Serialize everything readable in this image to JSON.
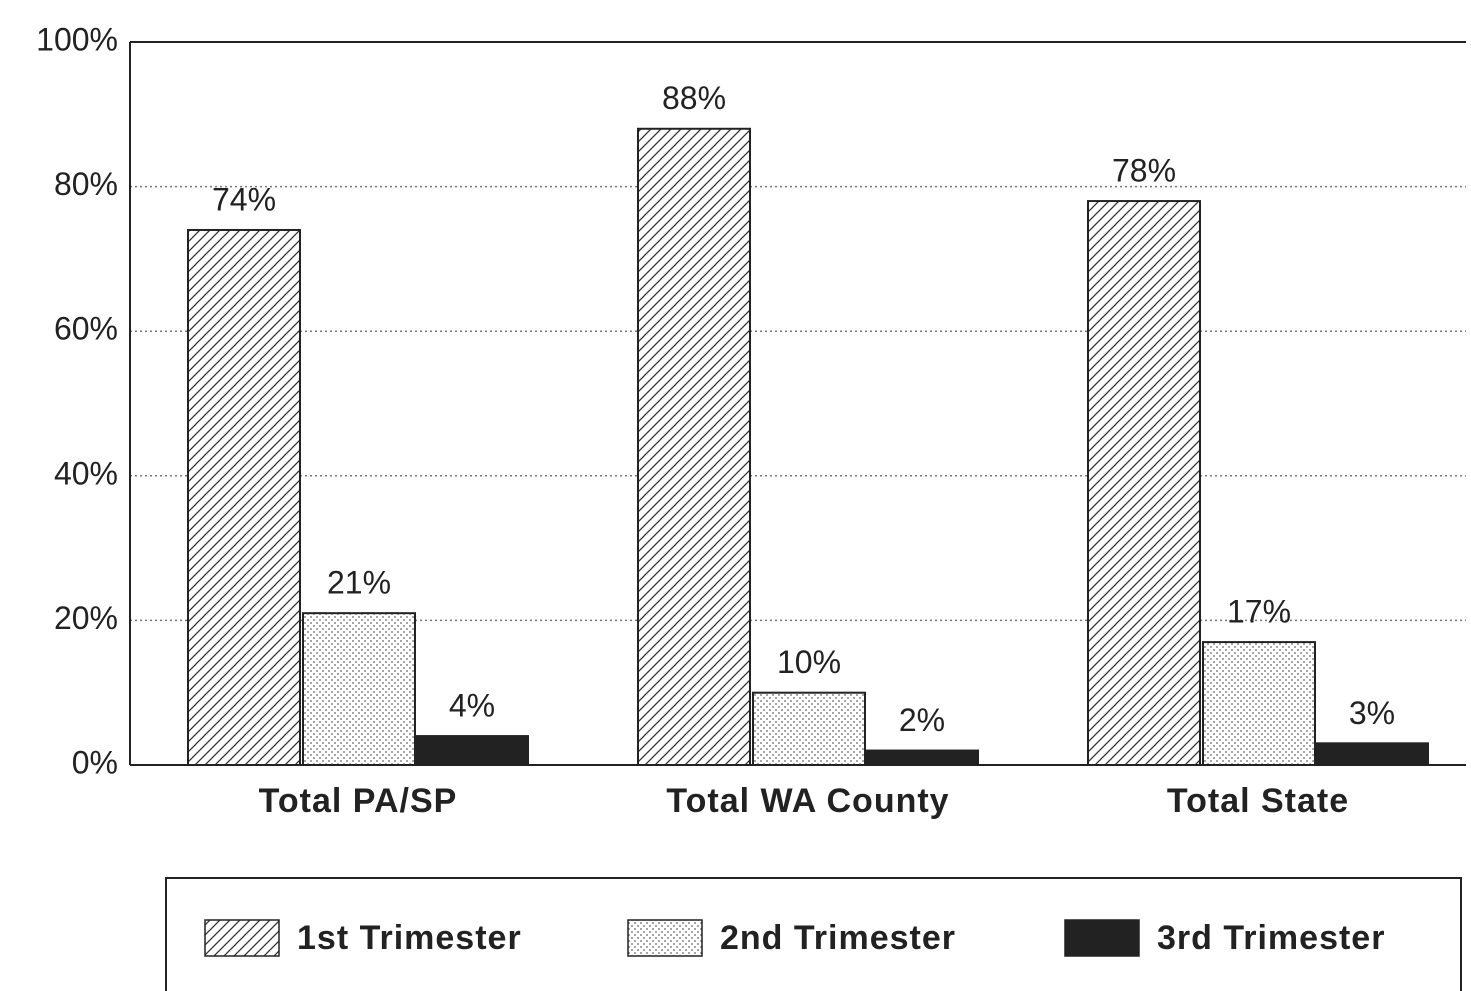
{
  "chart_data": {
    "type": "bar",
    "categories": [
      "Total PA/SP",
      "Total WA County",
      "Total State"
    ],
    "series": [
      {
        "name": "1st Trimester",
        "color": "#222222",
        "pattern": "hatch",
        "values": [
          74,
          88,
          78
        ],
        "value_labels": [
          "74%",
          "88%",
          "78%"
        ]
      },
      {
        "name": "2nd Trimester",
        "color": "#555555",
        "pattern": "dots",
        "values": [
          21,
          10,
          17
        ],
        "value_labels": [
          "21%",
          "10%",
          "17%"
        ]
      },
      {
        "name": "3rd Trimester",
        "color": "#222222",
        "pattern": "solid",
        "values": [
          4,
          2,
          3
        ],
        "value_labels": [
          "4%",
          "2%",
          "3%"
        ]
      }
    ],
    "ylim": [
      0,
      100
    ],
    "yticks": [
      {
        "value": 0,
        "label": "0%"
      },
      {
        "value": 20,
        "label": "20%"
      },
      {
        "value": 40,
        "label": "40%"
      },
      {
        "value": 60,
        "label": "60%"
      },
      {
        "value": 80,
        "label": "80%"
      },
      {
        "value": 100,
        "label": "100%"
      }
    ],
    "grid": true,
    "legend": "bottom"
  }
}
